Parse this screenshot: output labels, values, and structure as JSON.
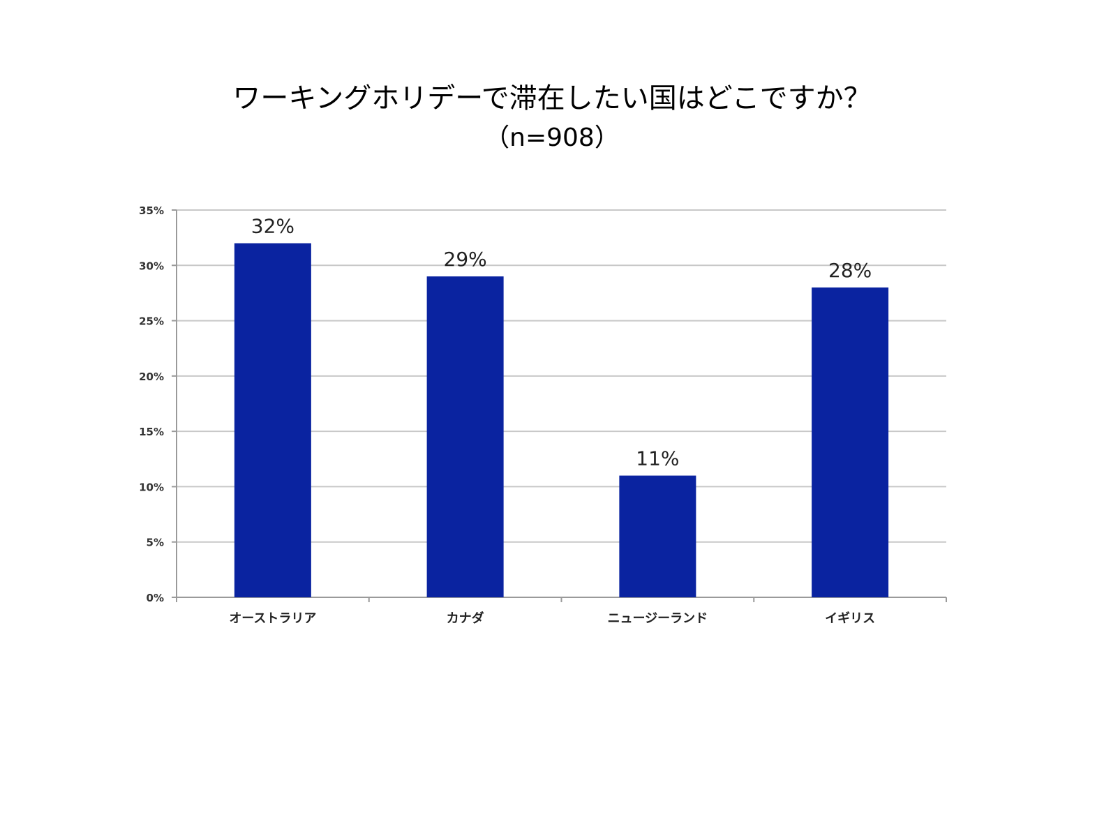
{
  "chart_data": {
    "type": "bar",
    "title": "ワーキングホリデーで滞在したい国はどこですか？",
    "subtitle": "（n=908）",
    "categories": [
      "オーストラリア",
      "カナダ",
      "ニュージーランド",
      "イギリス"
    ],
    "values": [
      32,
      29,
      11,
      28
    ],
    "data_labels": [
      "32%",
      "29%",
      "11%",
      "28%"
    ],
    "yticks": [
      "0%",
      "5%",
      "10%",
      "15%",
      "20%",
      "25%",
      "30%",
      "35%"
    ],
    "ylim": [
      0,
      35
    ],
    "grid": true,
    "legend": "none",
    "bar_color": "#0a23a0"
  }
}
